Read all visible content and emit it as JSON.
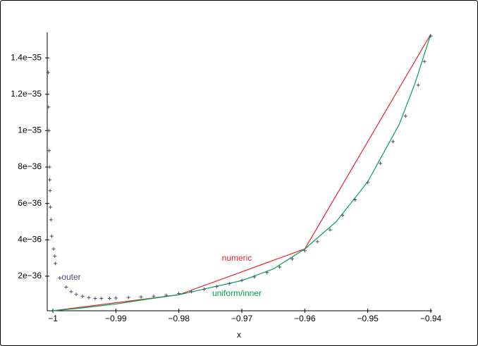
{
  "chart_data": {
    "type": "line",
    "x_label": "x",
    "xlim": [
      -1.0009,
      -0.94
    ],
    "ylim": [
      1e-37,
      1.54e-35
    ],
    "xticks": [
      {
        "value": -1,
        "label": "−1"
      },
      {
        "value": -0.99,
        "label": "−0.99"
      },
      {
        "value": -0.98,
        "label": "−0.98"
      },
      {
        "value": -0.97,
        "label": "−0.97"
      },
      {
        "value": -0.96,
        "label": "−0.96"
      },
      {
        "value": -0.95,
        "label": "−0.95"
      },
      {
        "value": -0.94,
        "label": "−0.94"
      }
    ],
    "yticks": [
      {
        "value": 2e-36,
        "label": "2e−36"
      },
      {
        "value": 4e-36,
        "label": "4e−36"
      },
      {
        "value": 6e-36,
        "label": "6e−36"
      },
      {
        "value": 8e-36,
        "label": "8e−36"
      },
      {
        "value": 1e-35,
        "label": "1e−35"
      },
      {
        "value": 1.2e-35,
        "label": "1.2e−35"
      },
      {
        "value": 1.4e-35,
        "label": "1.4e−35"
      }
    ],
    "series": [
      {
        "name": "numeric",
        "style": "line",
        "color": "#e3262f",
        "x": [
          -1,
          -0.98,
          -0.96,
          -0.94
        ],
        "values": [
          1e-37,
          9.8e-37,
          3.5e-36,
          1.53e-35
        ]
      },
      {
        "name": "uniform/inner",
        "style": "line",
        "color": "#00a050",
        "x": [
          -1,
          -0.995,
          -0.99,
          -0.985,
          -0.98,
          -0.975,
          -0.97,
          -0.965,
          -0.96,
          -0.955,
          -0.95,
          -0.945,
          -0.9425,
          -0.94
        ],
        "values": [
          1e-37,
          2.7e-37,
          4.7e-37,
          7.4e-37,
          9.8e-37,
          1.37e-36,
          1.76e-36,
          2.4e-36,
          3.5e-36,
          5e-36,
          7.2e-36,
          1.035e-35,
          1.26e-35,
          1.53e-35
        ]
      },
      {
        "name": "outer",
        "style": "points",
        "color": "#4a4a78",
        "x": [
          -1.00075,
          -1.0007,
          -1.00065,
          -1.0006,
          -1.00055,
          -1.0005,
          -1.00045,
          -1.0004,
          -1.0003,
          -1.0002,
          -0.9999,
          -0.9997,
          -0.9996,
          -0.9989,
          -0.9979,
          -0.9971,
          -0.9963,
          -0.9953,
          -0.9943,
          -0.9933,
          -0.9923,
          -0.991,
          -0.99,
          -0.988,
          -0.986,
          -0.984,
          -0.982,
          -0.98,
          -0.978,
          -0.976,
          -0.974,
          -0.972,
          -0.97,
          -0.968,
          -0.966,
          -0.964,
          -0.962,
          -0.96,
          -0.958,
          -0.956,
          -0.954,
          -0.952,
          -0.95,
          -0.948,
          -0.946,
          -0.944,
          -0.942,
          -0.941,
          -0.94
        ],
        "values": [
          1.32e-35,
          1.13e-35,
          1e-35,
          8.9e-36,
          8e-36,
          7.3e-36,
          6.7e-36,
          5.8e-36,
          5.1e-36,
          4.2e-36,
          3.5e-36,
          3.1e-36,
          2.7e-36,
          1.9e-36,
          1.4e-36,
          1.15e-36,
          1e-36,
          9e-37,
          8.2e-37,
          7.8e-37,
          7.8e-37,
          7.8e-37,
          8e-37,
          8.3e-37,
          8.6e-37,
          9e-37,
          9.5e-37,
          1.05e-36,
          1.15e-36,
          1.28e-36,
          1.43e-36,
          1.59e-36,
          1.77e-36,
          1.96e-36,
          2.2e-36,
          2.5e-36,
          2.95e-36,
          3.4e-36,
          3.9e-36,
          4.55e-36,
          5.35e-36,
          6.2e-36,
          7.15e-36,
          8.2e-36,
          9.4e-36,
          1.08e-35,
          1.25e-35,
          1.38e-35,
          1.52e-35
        ]
      }
    ]
  }
}
